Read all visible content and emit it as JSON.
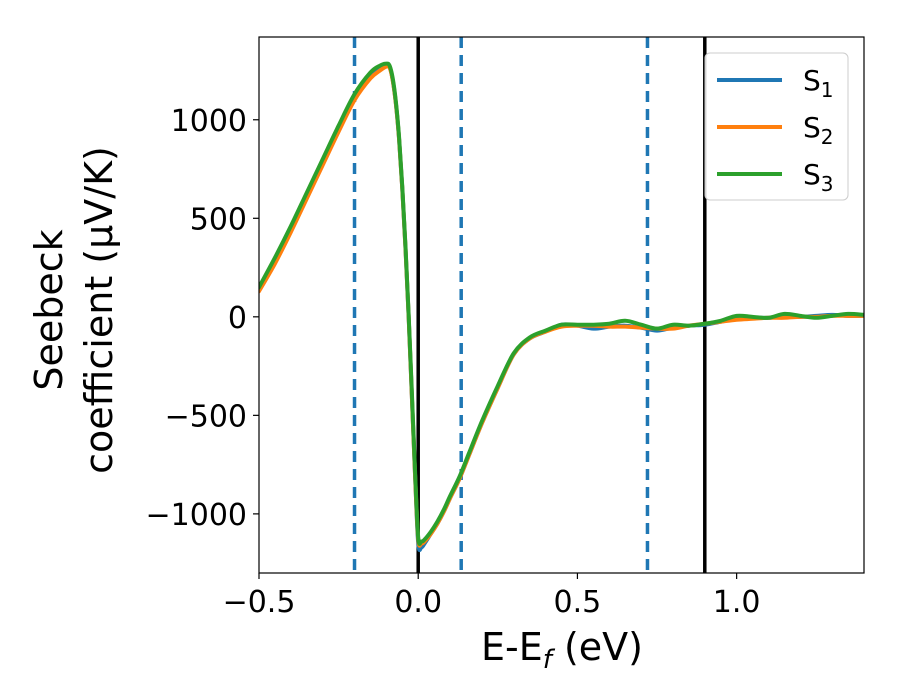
{
  "chart_data": {
    "type": "line",
    "xlabel": "E-E",
    "xlabel_sub": "f",
    "xlabel_unit": "(eV)",
    "ylabel_line1": "Seebeck",
    "ylabel_line2": "coefficient  (μV/K)",
    "xlim": [
      -0.5,
      1.4
    ],
    "ylim": [
      -1300,
      1420
    ],
    "xticks": [
      -0.5,
      0.0,
      0.5,
      1.0
    ],
    "xtick_labels": [
      "−0.5",
      "0.0",
      "0.5",
      "1.0"
    ],
    "yticks": [
      -1000,
      -500,
      0,
      500,
      1000
    ],
    "ytick_labels": [
      "−1000",
      "−500",
      "0",
      "500",
      "1000"
    ],
    "vlines_solid": [
      0.0,
      0.9
    ],
    "vlines_dashed": [
      -0.2,
      0.135,
      0.72
    ],
    "vline_solid_color": "#000000",
    "vline_dashed_color": "#1f77b4",
    "legend_position": "top-right",
    "series": [
      {
        "name": "S",
        "sub": "1",
        "color": "#1f77b4",
        "x": [
          -0.5,
          -0.45,
          -0.4,
          -0.35,
          -0.3,
          -0.25,
          -0.2,
          -0.15,
          -0.12,
          -0.1,
          -0.09,
          -0.08,
          -0.07,
          -0.06,
          -0.05,
          -0.04,
          -0.03,
          -0.02,
          -0.01,
          0.0,
          0.01,
          0.02,
          0.04,
          0.06,
          0.08,
          0.1,
          0.13,
          0.16,
          0.2,
          0.25,
          0.3,
          0.35,
          0.4,
          0.45,
          0.5,
          0.55,
          0.6,
          0.65,
          0.7,
          0.75,
          0.8,
          0.85,
          0.9,
          0.95,
          1.0,
          1.05,
          1.1,
          1.15,
          1.2,
          1.25,
          1.3,
          1.35,
          1.4
        ],
        "values": [
          150,
          290,
          450,
          620,
          790,
          960,
          1120,
          1230,
          1270,
          1280,
          1270,
          1200,
          1080,
          900,
          650,
          350,
          0,
          -400,
          -800,
          -1150,
          -1170,
          -1150,
          -1100,
          -1050,
          -990,
          -920,
          -820,
          -700,
          -540,
          -360,
          -190,
          -110,
          -75,
          -40,
          -45,
          -60,
          -50,
          -45,
          -55,
          -70,
          -55,
          -45,
          -40,
          -25,
          -10,
          -5,
          -5,
          0,
          0,
          5,
          10,
          5,
          5
        ]
      },
      {
        "name": "S",
        "sub": "2",
        "color": "#ff7f0e",
        "x": [
          -0.5,
          -0.45,
          -0.4,
          -0.35,
          -0.3,
          -0.25,
          -0.2,
          -0.15,
          -0.12,
          -0.1,
          -0.09,
          -0.08,
          -0.07,
          -0.06,
          -0.05,
          -0.04,
          -0.03,
          -0.02,
          -0.01,
          0.0,
          0.01,
          0.02,
          0.04,
          0.06,
          0.08,
          0.1,
          0.13,
          0.16,
          0.2,
          0.25,
          0.3,
          0.35,
          0.4,
          0.45,
          0.5,
          0.55,
          0.6,
          0.65,
          0.7,
          0.75,
          0.8,
          0.85,
          0.9,
          0.95,
          1.0,
          1.05,
          1.1,
          1.15,
          1.2,
          1.25,
          1.3,
          1.35,
          1.4
        ],
        "values": [
          130,
          270,
          430,
          600,
          770,
          940,
          1100,
          1210,
          1250,
          1270,
          1265,
          1200,
          1080,
          900,
          650,
          350,
          0,
          -400,
          -800,
          -1130,
          -1150,
          -1140,
          -1100,
          -1050,
          -990,
          -920,
          -820,
          -700,
          -540,
          -360,
          -190,
          -110,
          -75,
          -50,
          -45,
          -45,
          -50,
          -50,
          -55,
          -60,
          -60,
          -45,
          -35,
          -25,
          -15,
          -10,
          -5,
          -5,
          0,
          0,
          5,
          5,
          5
        ]
      },
      {
        "name": "S",
        "sub": "3",
        "color": "#2ca02c",
        "x": [
          -0.5,
          -0.45,
          -0.4,
          -0.35,
          -0.3,
          -0.25,
          -0.2,
          -0.15,
          -0.12,
          -0.1,
          -0.09,
          -0.08,
          -0.07,
          -0.06,
          -0.05,
          -0.04,
          -0.03,
          -0.02,
          -0.01,
          0.0,
          0.01,
          0.02,
          0.04,
          0.06,
          0.08,
          0.1,
          0.13,
          0.16,
          0.2,
          0.25,
          0.3,
          0.35,
          0.4,
          0.45,
          0.5,
          0.55,
          0.6,
          0.65,
          0.7,
          0.75,
          0.8,
          0.85,
          0.9,
          0.95,
          1.0,
          1.05,
          1.1,
          1.15,
          1.2,
          1.25,
          1.3,
          1.35,
          1.4
        ],
        "values": [
          150,
          300,
          460,
          630,
          800,
          970,
          1130,
          1240,
          1275,
          1285,
          1275,
          1210,
          1090,
          910,
          660,
          360,
          10,
          -380,
          -780,
          -1120,
          -1140,
          -1130,
          -1090,
          -1040,
          -980,
          -910,
          -810,
          -690,
          -530,
          -350,
          -185,
          -105,
          -70,
          -40,
          -40,
          -40,
          -35,
          -20,
          -40,
          -60,
          -40,
          -45,
          -35,
          -20,
          5,
          0,
          -5,
          15,
          5,
          -5,
          5,
          15,
          10
        ]
      }
    ]
  }
}
